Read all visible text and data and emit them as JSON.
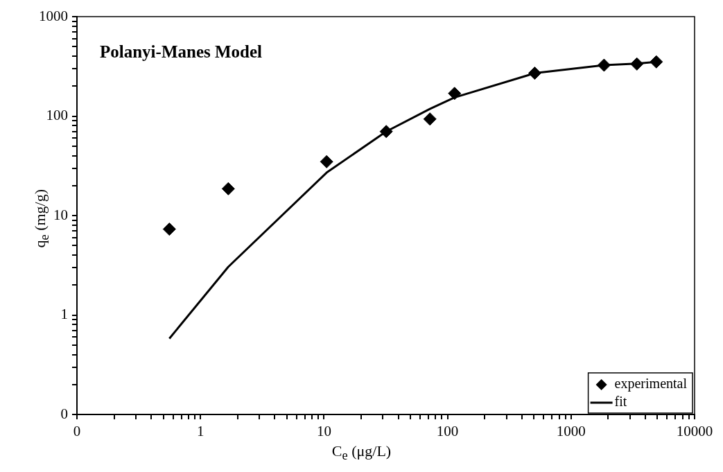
{
  "chart_data": {
    "type": "scatter",
    "annotations": [
      "Polanyi-Manes Model"
    ],
    "xlabel": "C$_{e}$ (μg/L)",
    "ylabel": "q$_{e}$ (mg/g)",
    "log": "xy",
    "grid": false,
    "legend": "bottom right",
    "xlim": [
      0.1,
      10000
    ],
    "ylim": [
      0.1,
      1000
    ],
    "xticks": [
      {
        "value": 0.1,
        "label": "0"
      },
      {
        "value": 0.2,
        "label": null
      },
      {
        "value": 0.3,
        "label": null
      },
      {
        "value": 0.4,
        "label": null
      },
      {
        "value": 0.5,
        "label": null
      },
      {
        "value": 0.6,
        "label": null
      },
      {
        "value": 0.7,
        "label": null
      },
      {
        "value": 0.8,
        "label": null
      },
      {
        "value": 0.9,
        "label": null
      },
      1,
      {
        "value": 2,
        "label": null
      },
      {
        "value": 3,
        "label": null
      },
      {
        "value": 4,
        "label": null
      },
      {
        "value": 5,
        "label": null
      },
      {
        "value": 6,
        "label": null
      },
      {
        "value": 7,
        "label": null
      },
      {
        "value": 8,
        "label": null
      },
      {
        "value": 9,
        "label": null
      },
      10,
      {
        "value": 20,
        "label": null
      },
      {
        "value": 30,
        "label": null
      },
      {
        "value": 40,
        "label": null
      },
      {
        "value": 50,
        "label": null
      },
      {
        "value": 60,
        "label": null
      },
      {
        "value": 70,
        "label": null
      },
      {
        "value": 80,
        "label": null
      },
      {
        "value": 90,
        "label": null
      },
      100,
      {
        "value": 200,
        "label": null
      },
      {
        "value": 300,
        "label": null
      },
      {
        "value": 400,
        "label": null
      },
      {
        "value": 500,
        "label": null
      },
      {
        "value": 600,
        "label": null
      },
      {
        "value": 700,
        "label": null
      },
      {
        "value": 800,
        "label": null
      },
      {
        "value": 900,
        "label": null
      },
      1000,
      {
        "value": 2000,
        "label": null
      },
      {
        "value": 3000,
        "label": null
      },
      {
        "value": 4000,
        "label": null
      },
      {
        "value": 5000,
        "label": null
      },
      {
        "value": 6000,
        "label": null
      },
      {
        "value": 7000,
        "label": null
      },
      {
        "value": 8000,
        "label": null
      },
      {
        "value": 9000,
        "label": null
      },
      10000
    ],
    "yticks": [
      {
        "value": 0.1,
        "label": "0"
      },
      {
        "value": 0.2,
        "label": null
      },
      {
        "value": 0.3,
        "label": null
      },
      {
        "value": 0.4,
        "label": null
      },
      {
        "value": 0.5,
        "label": null
      },
      {
        "value": 0.6,
        "label": null
      },
      {
        "value": 0.7,
        "label": null
      },
      {
        "value": 0.8,
        "label": null
      },
      {
        "value": 0.9,
        "label": null
      },
      1,
      {
        "value": 2,
        "label": null
      },
      {
        "value": 3,
        "label": null
      },
      {
        "value": 4,
        "label": null
      },
      {
        "value": 5,
        "label": null
      },
      {
        "value": 6,
        "label": null
      },
      {
        "value": 7,
        "label": null
      },
      {
        "value": 8,
        "label": null
      },
      {
        "value": 9,
        "label": null
      },
      10,
      {
        "value": 20,
        "label": null
      },
      {
        "value": 30,
        "label": null
      },
      {
        "value": 40,
        "label": null
      },
      {
        "value": 50,
        "label": null
      },
      {
        "value": 60,
        "label": null
      },
      {
        "value": 70,
        "label": null
      },
      {
        "value": 80,
        "label": null
      },
      {
        "value": 90,
        "label": null
      },
      100,
      {
        "value": 200,
        "label": null
      },
      {
        "value": 300,
        "label": null
      },
      {
        "value": 400,
        "label": null
      },
      {
        "value": 500,
        "label": null
      },
      {
        "value": 600,
        "label": null
      },
      {
        "value": 700,
        "label": null
      },
      {
        "value": 800,
        "label": null
      },
      {
        "value": 900,
        "label": null
      },
      1000
    ],
    "x": [
      0.56,
      1.68,
      10.5,
      31.9,
      72,
      114,
      508,
      1850,
      3410,
      4900
    ],
    "series": [
      {
        "name": "experimental",
        "marker": "diamond",
        "color": "#000000",
        "values": [
          7.3,
          18.6,
          34.8,
          70,
          93.5,
          169,
          270,
          325,
          334,
          351
        ]
      },
      {
        "name": "fit",
        "type": "line",
        "marker": "none",
        "line_style": "solid",
        "color": "#000000",
        "values": [
          0.58,
          3.05,
          27,
          70,
          118,
          154,
          270,
          325,
          337,
          351
        ]
      }
    ]
  }
}
